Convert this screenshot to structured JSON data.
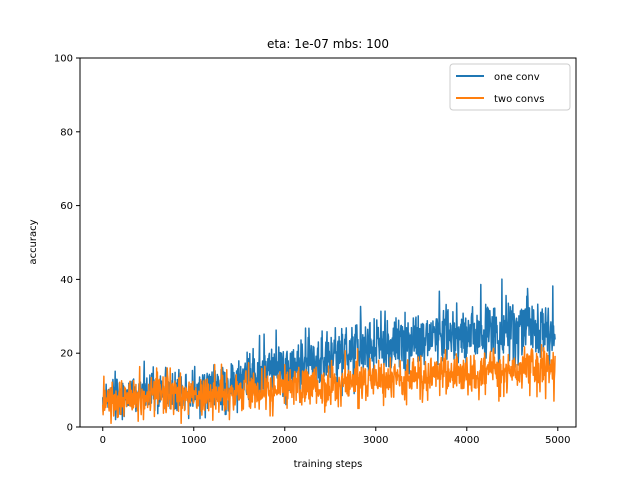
{
  "chart_data": {
    "type": "line",
    "title": "eta: 1e-07 mbs: 100",
    "xlabel": "training steps",
    "ylabel": "accuracy",
    "xlim": [
      -250,
      5200
    ],
    "ylim": [
      0,
      100
    ],
    "xticks": [
      0,
      1000,
      2000,
      3000,
      4000,
      5000
    ],
    "yticks": [
      0,
      20,
      40,
      60,
      80,
      100
    ],
    "grid": false,
    "legend_position": "top-right",
    "series": [
      {
        "name": "one conv",
        "color": "#1f77b4",
        "x": [
          0,
          250,
          500,
          750,
          1000,
          1250,
          1500,
          1750,
          2000,
          2250,
          2500,
          2750,
          3000,
          3250,
          3500,
          3750,
          4000,
          4250,
          4500,
          4750,
          4970
        ],
        "mean": [
          8,
          9,
          9.5,
          10,
          10,
          11,
          12.5,
          14.5,
          16,
          17.5,
          19,
          20.5,
          22,
          23,
          24,
          25,
          25.5,
          26.5,
          27,
          27.5,
          27
        ],
        "low": [
          2,
          2,
          2,
          2,
          2,
          3,
          4,
          5,
          6,
          7,
          8,
          9,
          10,
          11,
          12,
          13,
          13,
          14,
          14,
          15,
          15
        ],
        "high": [
          15,
          17,
          18,
          19,
          19,
          21,
          23,
          25,
          27,
          29,
          31,
          32,
          34,
          35,
          36,
          37,
          38,
          39,
          41,
          40,
          38
        ]
      },
      {
        "name": "two convs",
        "color": "#ff7f0e",
        "x": [
          0,
          250,
          500,
          750,
          1000,
          1250,
          1500,
          1750,
          2000,
          2250,
          2500,
          2750,
          3000,
          3250,
          3500,
          3750,
          4000,
          4250,
          4500,
          4750,
          4970
        ],
        "mean": [
          8,
          8,
          8.2,
          8.4,
          8.6,
          9,
          9.5,
          10,
          10.5,
          11,
          11.5,
          12,
          12.5,
          13,
          13.5,
          14,
          14.5,
          15,
          15.5,
          16,
          16
        ],
        "low": [
          1,
          1,
          1,
          1,
          1,
          2,
          2,
          3,
          3,
          4,
          4,
          5,
          5,
          5,
          6,
          6,
          7,
          7,
          7,
          7,
          7
        ],
        "high": [
          17,
          17,
          16,
          16,
          16,
          17,
          17,
          18,
          19,
          19,
          20,
          21,
          22,
          22,
          23,
          24,
          24,
          25,
          25,
          25,
          25
        ]
      }
    ]
  }
}
